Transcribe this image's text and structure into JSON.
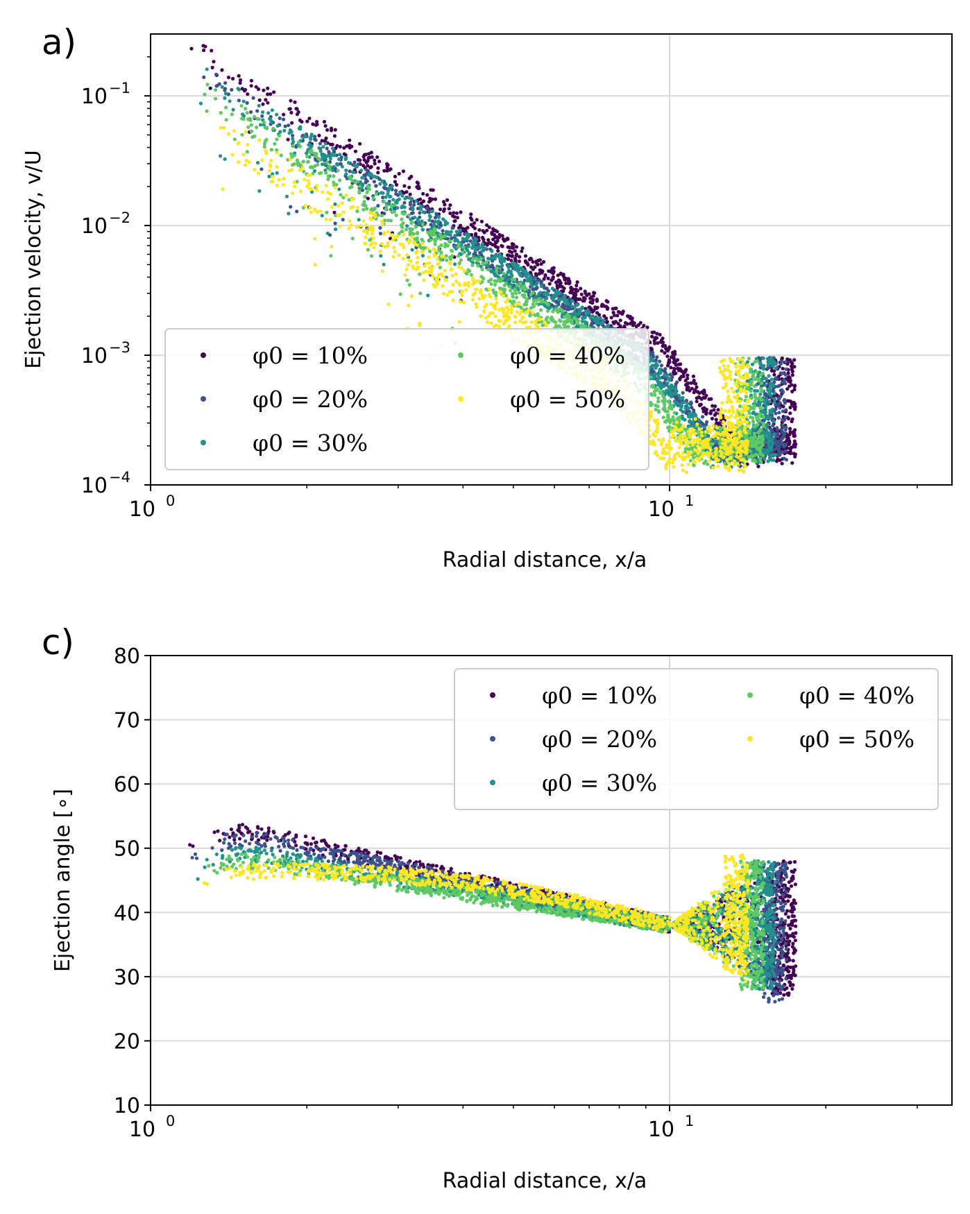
{
  "chart_data": [
    {
      "type": "scatter",
      "panel_label": "a)",
      "xscale": "log",
      "yscale": "log",
      "xlim": [
        1,
        35
      ],
      "ylim": [
        0.0001,
        0.3
      ],
      "xlabel": "Radial distance, x/a",
      "ylabel": "Ejection velocity, v/U",
      "grid": true,
      "legend": {
        "position": "lower-left",
        "columns": 2
      },
      "x_ticks": [
        {
          "value": 1,
          "base": "10",
          "exp": "0"
        },
        {
          "value": 10,
          "base": "10",
          "exp": "1"
        }
      ],
      "y_ticks": [
        {
          "value": 0.1,
          "base": "10",
          "exp": "−1"
        },
        {
          "value": 0.01,
          "base": "10",
          "exp": "−2"
        },
        {
          "value": 0.001,
          "base": "10",
          "exp": "−3"
        },
        {
          "value": 0.0001,
          "base": "10",
          "exp": "−4"
        }
      ],
      "series": [
        {
          "name": "φ0 = 10%",
          "color": "#440154",
          "x_start": 1.17,
          "x_end": 17.5,
          "v_start": 0.25,
          "spread_db": 0.18
        },
        {
          "name": "φ0 = 20%",
          "color": "#3b528b",
          "x_start": 1.2,
          "x_end": 16.8,
          "v_start": 0.16,
          "spread_db": 0.18
        },
        {
          "name": "φ0 = 30%",
          "color": "#21918c",
          "x_start": 1.22,
          "x_end": 16.0,
          "v_start": 0.15,
          "spread_db": 0.2
        },
        {
          "name": "φ0 = 40%",
          "color": "#5ec962",
          "x_start": 1.2,
          "x_end": 15.2,
          "v_start": 0.115,
          "spread_db": 0.22
        },
        {
          "name": "φ0 = 50%",
          "color": "#fde725",
          "x_start": 1.25,
          "x_end": 14.2,
          "v_start": 0.065,
          "spread_db": 0.3
        }
      ]
    },
    {
      "type": "scatter",
      "panel_label": "c)",
      "xscale": "log",
      "yscale": "linear",
      "xlim": [
        1,
        35
      ],
      "ylim": [
        10,
        80
      ],
      "xlabel": "Radial distance, x/a",
      "ylabel": "Ejection angle [∘]",
      "grid": true,
      "legend": {
        "position": "upper-right",
        "columns": 2
      },
      "x_ticks": [
        {
          "value": 1,
          "base": "10",
          "exp": "0"
        },
        {
          "value": 10,
          "base": "10",
          "exp": "1"
        }
      ],
      "y_ticks": [
        10,
        20,
        30,
        40,
        50,
        60,
        70,
        80
      ],
      "series": [
        {
          "name": "φ0 = 10%",
          "color": "#440154",
          "x_start": 1.17,
          "x_end": 17.5,
          "peak_angle": 52.5,
          "tail_min": 27,
          "tail_max": 48
        },
        {
          "name": "φ0 = 20%",
          "color": "#3b528b",
          "x_start": 1.2,
          "x_end": 16.8,
          "peak_angle": 51.5,
          "tail_min": 26,
          "tail_max": 48
        },
        {
          "name": "φ0 = 30%",
          "color": "#21918c",
          "x_start": 1.22,
          "x_end": 16.0,
          "peak_angle": 49,
          "tail_min": 28,
          "tail_max": 48
        },
        {
          "name": "φ0 = 40%",
          "color": "#5ec962",
          "x_start": 1.2,
          "x_end": 15.2,
          "peak_angle": 48,
          "tail_min": 28,
          "tail_max": 48
        },
        {
          "name": "φ0 = 50%",
          "color": "#fde725",
          "x_start": 1.25,
          "x_end": 14.2,
          "peak_angle": 46.5,
          "tail_min": 30,
          "tail_max": 49
        }
      ]
    }
  ]
}
